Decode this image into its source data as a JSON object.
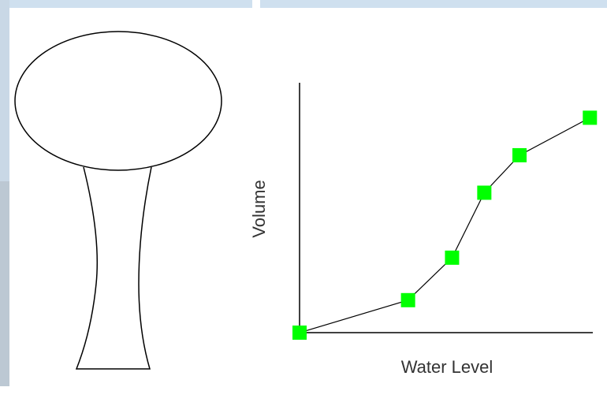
{
  "chart_data": {
    "type": "line",
    "x_label": "Water Level",
    "y_label": "Volume",
    "x": [
      0,
      3.7,
      5.2,
      6.3,
      7.5,
      9.9
    ],
    "series": [
      {
        "color": "#00ff00",
        "values": [
          0,
          1.3,
          3.0,
          5.6,
          7.1,
          8.6
        ]
      }
    ],
    "xlim": [
      0,
      10
    ],
    "ylim": [
      0,
      10
    ],
    "grid": false
  }
}
